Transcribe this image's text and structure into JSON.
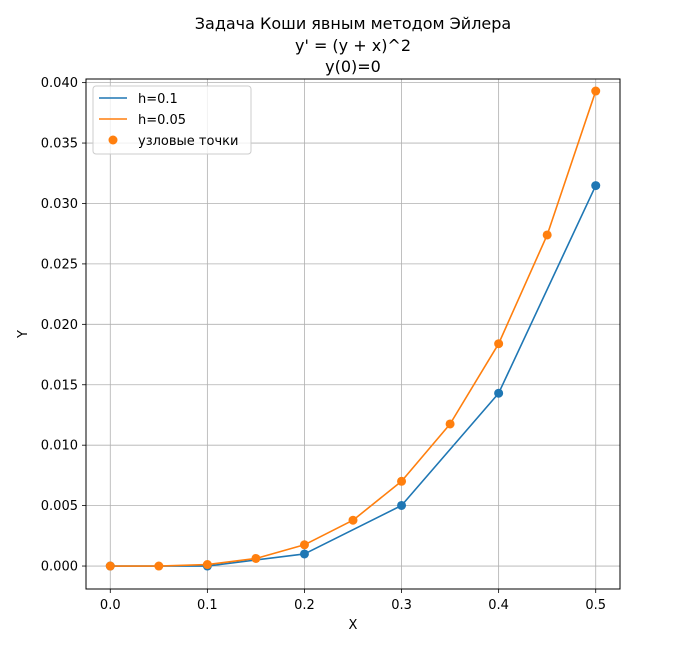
{
  "chart_data": {
    "type": "line",
    "title_lines": [
      "Задача Коши явным методом Эйлера",
      "y' = (y + x)^2",
      "y(0)=0"
    ],
    "xlabel": "X",
    "ylabel": "Y",
    "xlim": [
      -0.025,
      0.525
    ],
    "ylim": [
      -0.0019,
      0.0403
    ],
    "xticks": [
      0.0,
      0.1,
      0.2,
      0.3,
      0.4,
      0.5
    ],
    "xtick_labels": [
      "0.0",
      "0.1",
      "0.2",
      "0.3",
      "0.4",
      "0.5"
    ],
    "yticks": [
      0.0,
      0.005,
      0.01,
      0.015,
      0.02,
      0.025,
      0.03,
      0.035,
      0.04
    ],
    "ytick_labels": [
      "0.000",
      "0.005",
      "0.010",
      "0.015",
      "0.020",
      "0.025",
      "0.030",
      "0.035",
      "0.040"
    ],
    "grid": true,
    "legend_position": "top-left",
    "series": [
      {
        "name": "h=0.1",
        "color": "#1f77b4",
        "x": [
          0.0,
          0.1,
          0.2,
          0.3,
          0.4,
          0.5
        ],
        "y": [
          0.0,
          0.0,
          0.001,
          0.00501,
          0.0143,
          0.03148
        ]
      },
      {
        "name": "h=0.05",
        "color": "#ff7f0e",
        "x": [
          0.0,
          0.05,
          0.1,
          0.15,
          0.2,
          0.25,
          0.3,
          0.35,
          0.4,
          0.45,
          0.5
        ],
        "y": [
          0.0,
          0.0,
          0.000125,
          0.000626,
          0.001759,
          0.003791,
          0.007013,
          0.011755,
          0.018398,
          0.027396,
          0.039302
        ]
      }
    ],
    "marker_legend_label": "узловые точки",
    "marker_legend_color": "#ff7f0e"
  }
}
